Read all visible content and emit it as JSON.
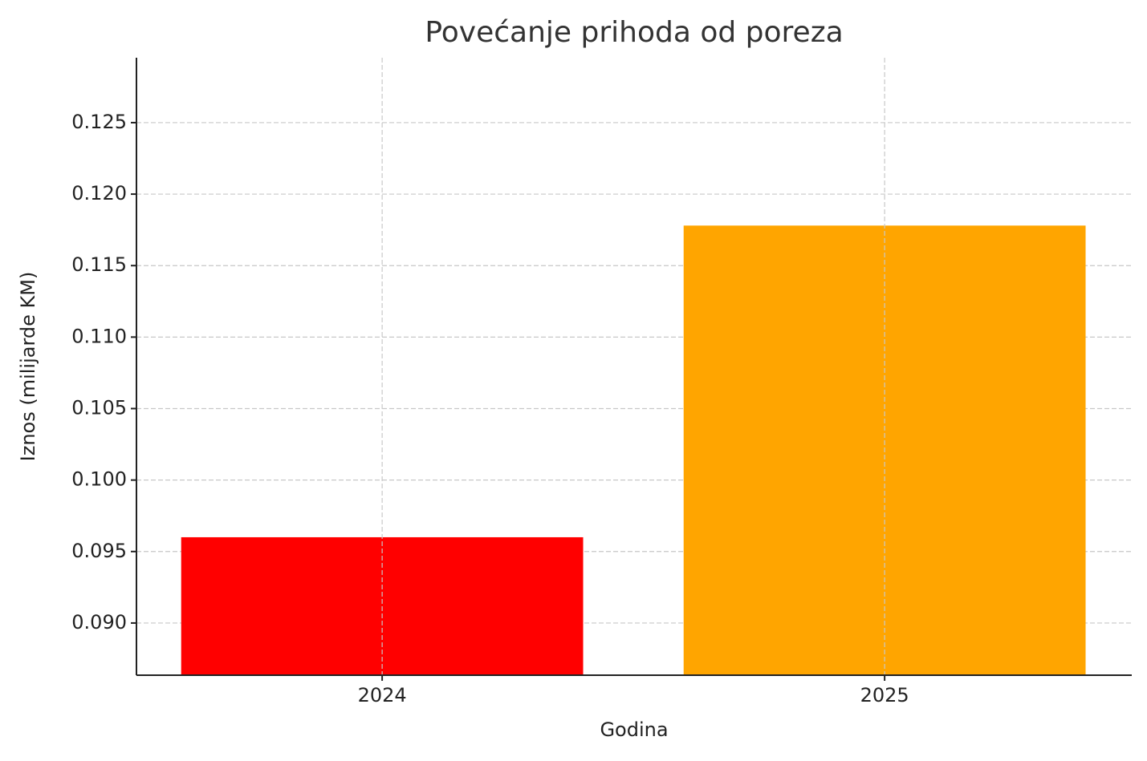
{
  "chart_data": {
    "type": "bar",
    "title": "Povećanje prihoda od poreza",
    "x_label": "Godina",
    "y_label": "Iznos (milijarde KM)",
    "categories": [
      "2024",
      "2025"
    ],
    "values": [
      0.096,
      0.1178
    ],
    "colors": [
      "#ff0000",
      "#ffa500"
    ],
    "ylim": [
      0.08635,
      0.12954
    ],
    "yticks": [
      {
        "value": 0.09,
        "label": "0.090"
      },
      0.095,
      {
        "value": 0.1,
        "label": "0.100"
      },
      0.105,
      {
        "value": 0.11,
        "label": "0.110"
      },
      0.115,
      {
        "value": 0.12,
        "label": "0.120"
      },
      0.125
    ],
    "grid": true
  }
}
